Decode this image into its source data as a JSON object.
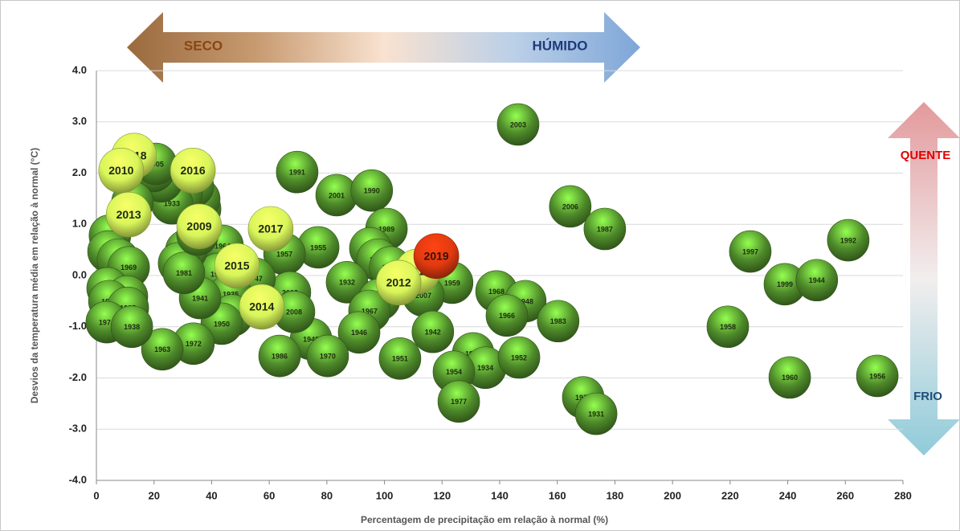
{
  "chart_data": {
    "type": "scatter",
    "x_label": "Percentagem de precipitação em relação à normal (%)",
    "y_label": "Desvios da temperatura média em relação à normal  (°C)",
    "annotations": {
      "dry": "SECO",
      "wet": "HÚMIDO",
      "hot": "QUENTE",
      "cold": "FRIO"
    },
    "xlim": [
      0,
      280
    ],
    "xticks": [
      0,
      20,
      40,
      60,
      80,
      100,
      120,
      140,
      160,
      180,
      200,
      220,
      240,
      260,
      280
    ],
    "ylim": [
      -4,
      4
    ],
    "yticks": [
      {
        "value": -4,
        "label": "-4.0"
      },
      {
        "value": -3,
        "label": "-3.0"
      },
      {
        "value": -2,
        "label": "-2.0"
      },
      {
        "value": -1,
        "label": "-1.0"
      },
      {
        "value": 0,
        "label": "0.0"
      },
      {
        "value": 1,
        "label": "1.0"
      },
      {
        "value": 2,
        "label": "2.0"
      },
      {
        "value": 3,
        "label": "3.0"
      },
      {
        "value": 4,
        "label": "4.0"
      }
    ],
    "grid": true,
    "series": [
      {
        "color": "#4e8a2a",
        "labels": [
          "2003",
          "1991",
          "2001",
          "1990",
          "2006",
          "1987",
          "1989",
          "1955",
          "1957",
          "1980",
          "1982",
          "1994",
          "1959",
          "2007",
          "1932",
          "1984",
          "1967",
          "1946",
          "1942",
          "1940",
          "1970",
          "1986",
          "1951",
          "1945",
          "1934",
          "1954",
          "1977",
          "1952",
          "1968",
          "1948",
          "1966",
          "1983",
          "1971",
          "1931",
          "2002",
          "2008",
          "1947",
          "1964",
          "1993",
          "1935",
          "1996",
          "1950",
          "1941",
          "1972",
          "1963",
          "1973",
          "1975",
          "1981",
          "1943",
          "1953",
          "1940",
          "1936",
          "1961",
          "1933",
          "1998",
          "1949",
          "2005",
          "1995",
          "1937",
          "1962",
          "1965",
          "1969",
          "1978",
          "1979",
          "1988",
          "1985",
          "1974",
          "1938",
          "1997",
          "1999",
          "1944",
          "1992",
          "1958",
          "1960",
          "1956"
        ],
        "x": [
          146.4,
          69.7,
          83.4,
          95.6,
          164.5,
          176.5,
          100.7,
          77,
          65.3,
          95.1,
          97.6,
          102,
          123.5,
          113.5,
          87,
          98.2,
          94.8,
          91.2,
          116.8,
          74.5,
          80.3,
          63.6,
          105.4,
          130.8,
          135,
          124.1,
          125.8,
          146.7,
          138.9,
          148.9,
          142.5,
          160.3,
          169,
          173.5,
          67.2,
          68.6,
          54.9,
          43.8,
          42.4,
          46.6,
          47.1,
          43.5,
          36,
          33.7,
          22.9,
          31.2,
          28.7,
          30.4,
          35.1,
          36,
          35.7,
          33.5,
          29.6,
          26.2,
          22.6,
          19.8,
          20.6,
          12.5,
          4.7,
          4.2,
          7.5,
          11.2,
          3.9,
          10.6,
          4.5,
          10.9,
          3.6,
          12.3,
          227,
          239,
          250.1,
          261,
          219.2,
          240.7,
          271.1
        ],
        "values": [
          2.95,
          2.02,
          1.57,
          1.66,
          1.35,
          0.91,
          0.91,
          0.55,
          0.42,
          0.53,
          0.31,
          0.16,
          -0.14,
          -0.39,
          -0.13,
          -0.47,
          -0.69,
          -1.11,
          -1.1,
          -1.24,
          -1.57,
          -1.57,
          -1.62,
          -1.52,
          -1.8,
          -1.88,
          -2.46,
          -1.6,
          -0.31,
          -0.5,
          -0.78,
          -0.89,
          -2.38,
          -2.7,
          -0.33,
          -0.71,
          -0.06,
          0.58,
          0.03,
          -0.36,
          -0.78,
          -0.94,
          -0.44,
          -1.33,
          -1.44,
          0.49,
          0.24,
          0.05,
          0.8,
          1.3,
          1.49,
          1.74,
          1.6,
          1.41,
          1.84,
          2.04,
          2.18,
          1.43,
          0.78,
          0.47,
          0.31,
          0.16,
          -0.25,
          -0.41,
          -0.5,
          -0.63,
          -0.91,
          -1.0,
          0.47,
          -0.17,
          -0.09,
          0.69,
          -1.0,
          -1.99,
          -1.96
        ]
      },
      {
        "color": "#d8f55a",
        "labels": [
          "2017",
          "2011",
          "2012",
          "2014",
          "2015",
          "2009",
          "2016",
          "2018",
          "2010",
          "2013"
        ],
        "x": [
          60.5,
          111.5,
          104.9,
          57.4,
          48.8,
          35.7,
          33.5,
          13.1,
          8.6,
          11.2
        ],
        "values": [
          0.91,
          0.08,
          -0.14,
          -0.61,
          0.19,
          0.96,
          2.05,
          2.34,
          2.05,
          1.19
        ]
      },
      {
        "color": "#e23a10",
        "labels": [
          "2019"
        ],
        "x": [
          118
        ],
        "values": [
          0.38
        ]
      }
    ]
  }
}
